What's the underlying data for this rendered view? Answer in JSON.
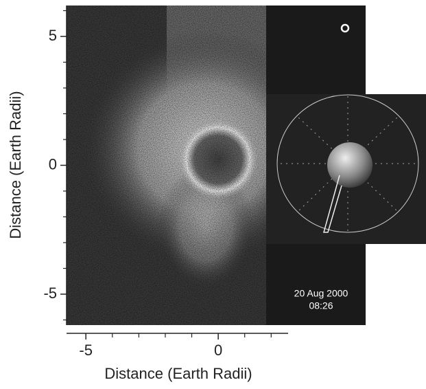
{
  "chart_data": {
    "type": "image",
    "x_label": "Distance (Earth Radii)",
    "y_label": "Distance (Earth Radii)",
    "xlim": [
      -5.73,
      2.64
    ],
    "ylim": [
      -6.2,
      6.2
    ],
    "xticks": [
      -5,
      0
    ],
    "yticks": [
      -5,
      0,
      5
    ],
    "xminor": [
      -6,
      -4,
      -3,
      -2,
      -1,
      1,
      2
    ],
    "yminor": [
      -6,
      -4,
      -3,
      -2,
      -1,
      1,
      2,
      3,
      4,
      6
    ],
    "annotations": [
      "20 Aug 2000",
      "08:26"
    ]
  }
}
